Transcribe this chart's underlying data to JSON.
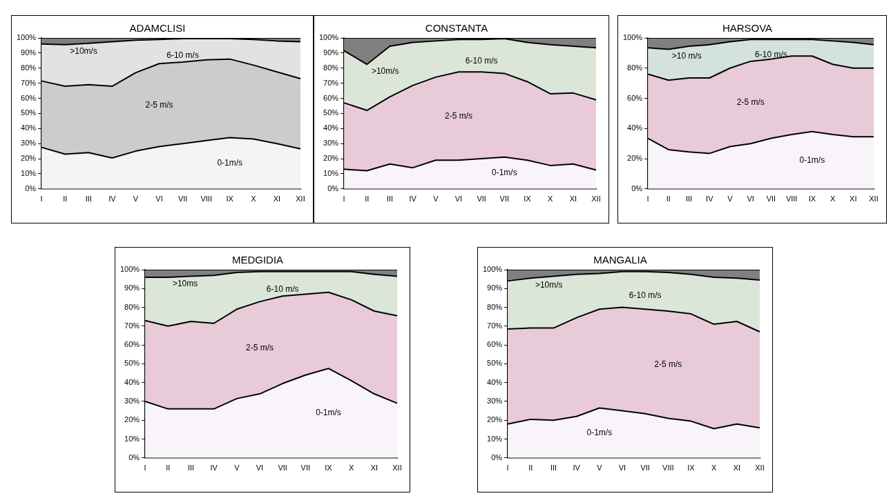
{
  "chart_data": [
    {
      "type": "area",
      "title": "ADAMCLISI",
      "stacked": true,
      "categories": [
        "I",
        "II",
        "III",
        "IV",
        "V",
        "VI",
        "VII",
        "VIII",
        "IX",
        "X",
        "XI",
        "XII"
      ],
      "ylim": [
        0,
        100
      ],
      "yticks": [
        {
          "value": 0,
          "label": "0%"
        },
        {
          "value": 10,
          "label": "10%"
        },
        {
          "value": 20,
          "label": "20%"
        },
        {
          "value": 30,
          "label": "30%"
        },
        {
          "value": 40,
          "label": "40%"
        },
        {
          "value": 50,
          "label": "50%"
        },
        {
          "value": 60,
          "label": "60%"
        },
        {
          "value": 70,
          "label": "70%"
        },
        {
          "value": 80,
          "label": "80%"
        },
        {
          "value": 90,
          "label": "90%"
        },
        {
          "value": 100,
          "label": "100%"
        }
      ],
      "grid": false,
      "legend": false,
      "series": [
        {
          "name": "0-1m/s",
          "color": "#f4f4f4",
          "values": [
            27.5,
            23,
            24,
            20.5,
            25,
            28,
            30,
            32,
            34,
            33,
            30,
            26.5
          ]
        },
        {
          "name": "2-5 m/s",
          "color": "#cccccc",
          "values": [
            44,
            45,
            45,
            47.5,
            52,
            55,
            54,
            53.5,
            52,
            49,
            47.5,
            46.5
          ]
        },
        {
          "name": "6-10 m/s",
          "color": "#e2e2e2",
          "values": [
            24.5,
            27.5,
            27.5,
            29.5,
            21.5,
            16,
            15.5,
            14,
            13.5,
            17,
            20.5,
            24.5
          ]
        },
        {
          "name": ">10m/s",
          "color": "#808080",
          "values": [
            4,
            4.5,
            3.5,
            2.5,
            1.5,
            1,
            0.5,
            0.5,
            0.5,
            1,
            2,
            2.5
          ]
        }
      ]
    },
    {
      "type": "area",
      "title": "CONSTANTA",
      "stacked": true,
      "categories": [
        "I",
        "II",
        "III",
        "IV",
        "V",
        "VI",
        "VII",
        "VII",
        "IX",
        "X",
        "XI",
        "XII"
      ],
      "ylim": [
        0,
        100
      ],
      "yticks": [
        {
          "value": 0,
          "label": "0%"
        },
        {
          "value": 10,
          "label": "10%"
        },
        {
          "value": 20,
          "label": "20%"
        },
        {
          "value": 30,
          "label": "30%"
        },
        {
          "value": 40,
          "label": "40%"
        },
        {
          "value": 50,
          "label": "50%"
        },
        {
          "value": 60,
          "label": "60%"
        },
        {
          "value": 70,
          "label": "70%"
        },
        {
          "value": 80,
          "label": "80%"
        },
        {
          "value": 90,
          "label": "90%"
        },
        {
          "value": 100,
          "label": "100%"
        }
      ],
      "grid": false,
      "legend": false,
      "series": [
        {
          "name": "0-1m/s",
          "color": "#f8f4fa",
          "values": [
            13,
            12,
            16.5,
            14,
            19,
            19,
            20,
            21,
            19,
            15.5,
            16.5,
            12.5
          ]
        },
        {
          "name": "2-5 m/s",
          "color": "#e8cad8",
          "values": [
            44,
            40,
            44.5,
            54.5,
            55,
            58.5,
            57.5,
            55.5,
            52,
            47.5,
            47,
            46.5
          ]
        },
        {
          "name": "6-10 m/s",
          "color": "#dbe6d8",
          "values": [
            34.5,
            30.5,
            33.5,
            28.5,
            24,
            21.5,
            21.5,
            23,
            26,
            32.5,
            31,
            34.5
          ]
        },
        {
          "name": ">10m/s",
          "color": "#808080",
          "values": [
            8.5,
            17.5,
            5.5,
            3,
            2,
            1,
            1,
            0.5,
            3,
            4.5,
            5.5,
            6.5
          ]
        }
      ]
    },
    {
      "type": "area",
      "title": "HARSOVA",
      "stacked": true,
      "categories": [
        "I",
        "II",
        "III",
        "IV",
        "V",
        "VI",
        "VII",
        "VIII",
        "IX",
        "X",
        "XI",
        "XII"
      ],
      "ylim": [
        0,
        100
      ],
      "yticks": [
        {
          "value": 0,
          "label": "0%"
        },
        {
          "value": 20,
          "label": "20%"
        },
        {
          "value": 40,
          "label": "40%"
        },
        {
          "value": 60,
          "label": "60%"
        },
        {
          "value": 80,
          "label": "80%"
        },
        {
          "value": 100,
          "label": "100%"
        }
      ],
      "grid": false,
      "legend": false,
      "series": [
        {
          "name": "0-1m/s",
          "color": "#f8f4fa",
          "values": [
            33.5,
            26,
            24.5,
            23.5,
            28,
            30,
            33.5,
            36,
            38,
            36,
            34.5,
            34.5
          ]
        },
        {
          "name": "2-5 m/s",
          "color": "#e8cad8",
          "values": [
            42.5,
            46,
            49,
            50,
            52,
            54.5,
            52.5,
            52,
            50,
            46.5,
            45.5,
            45.5
          ]
        },
        {
          "name": "6-10 m/s",
          "color": "#d4e2dc",
          "values": [
            17.5,
            20.5,
            21,
            22,
            17.5,
            14.5,
            13,
            11,
            11,
            15.5,
            17,
            15.5
          ]
        },
        {
          "name": ">10 m/s",
          "color": "#808080",
          "values": [
            6.5,
            7.5,
            5.5,
            4.5,
            2.5,
            1,
            1,
            1,
            1,
            2,
            3,
            4.5
          ]
        }
      ]
    },
    {
      "type": "area",
      "title": "MEDGIDIA",
      "stacked": true,
      "categories": [
        "I",
        "II",
        "III",
        "IV",
        "V",
        "VI",
        "VII",
        "VII",
        "IX",
        "X",
        "XI",
        "XII"
      ],
      "ylim": [
        0,
        100
      ],
      "yticks": [
        {
          "value": 0,
          "label": "0%"
        },
        {
          "value": 10,
          "label": "10%"
        },
        {
          "value": 20,
          "label": "20%"
        },
        {
          "value": 30,
          "label": "30%"
        },
        {
          "value": 40,
          "label": "40%"
        },
        {
          "value": 50,
          "label": "50%"
        },
        {
          "value": 60,
          "label": "60%"
        },
        {
          "value": 70,
          "label": "70%"
        },
        {
          "value": 80,
          "label": "80%"
        },
        {
          "value": 90,
          "label": "90%"
        },
        {
          "value": 100,
          "label": "100%"
        }
      ],
      "grid": false,
      "legend": false,
      "series": [
        {
          "name": "0-1m/s",
          "color": "#f8f4fa",
          "values": [
            30,
            26,
            26,
            26,
            31.5,
            34,
            39.5,
            44,
            47.5,
            41,
            34,
            29
          ]
        },
        {
          "name": "2-5 m/s",
          "color": "#e8cad8",
          "values": [
            43,
            44,
            46.5,
            45.5,
            47.5,
            49,
            46.5,
            43,
            40.5,
            43,
            44,
            46.5
          ]
        },
        {
          "name": "6-10 m/s",
          "color": "#dbe6d8",
          "values": [
            23,
            26,
            24,
            25.5,
            19.5,
            16,
            13,
            12,
            11,
            15,
            19.5,
            21
          ]
        },
        {
          "name": ">10ms",
          "color": "#808080",
          "values": [
            4,
            4,
            3.5,
            3,
            1.5,
            1,
            1,
            1,
            1,
            1,
            2.5,
            3.5
          ]
        }
      ]
    },
    {
      "type": "area",
      "title": "MANGALIA",
      "stacked": true,
      "categories": [
        "I",
        "II",
        "III",
        "IV",
        "V",
        "VI",
        "VII",
        "VIII",
        "IX",
        "X",
        "XI",
        "XII"
      ],
      "ylim": [
        0,
        100
      ],
      "yticks": [
        {
          "value": 0,
          "label": "0%"
        },
        {
          "value": 10,
          "label": "10%"
        },
        {
          "value": 20,
          "label": "20%"
        },
        {
          "value": 30,
          "label": "30%"
        },
        {
          "value": 40,
          "label": "40%"
        },
        {
          "value": 50,
          "label": "50%"
        },
        {
          "value": 60,
          "label": "60%"
        },
        {
          "value": 70,
          "label": "70%"
        },
        {
          "value": 80,
          "label": "80%"
        },
        {
          "value": 90,
          "label": "90%"
        },
        {
          "value": 100,
          "label": "100%"
        }
      ],
      "grid": false,
      "legend": false,
      "series": [
        {
          "name": "0-1m/s",
          "color": "#f8f4fa",
          "values": [
            18,
            20.5,
            20,
            22,
            26.5,
            25,
            23.5,
            21,
            19.5,
            15.5,
            18,
            16
          ]
        },
        {
          "name": "2-5 m/s",
          "color": "#e8cad8",
          "values": [
            50.5,
            48.5,
            49,
            52.5,
            52.5,
            55,
            55.5,
            57,
            57,
            55.5,
            54.5,
            51
          ]
        },
        {
          "name": "6-10 m/s",
          "color": "#dbe6d8",
          "values": [
            25.5,
            26.5,
            27.5,
            23,
            19,
            19,
            20,
            20.5,
            21,
            25,
            23,
            27.5
          ]
        },
        {
          "name": ">10m/s",
          "color": "#808080",
          "values": [
            6,
            4.5,
            3.5,
            2.5,
            2,
            1,
            1,
            1.5,
            2.5,
            4,
            4.5,
            5.5
          ]
        }
      ]
    }
  ]
}
